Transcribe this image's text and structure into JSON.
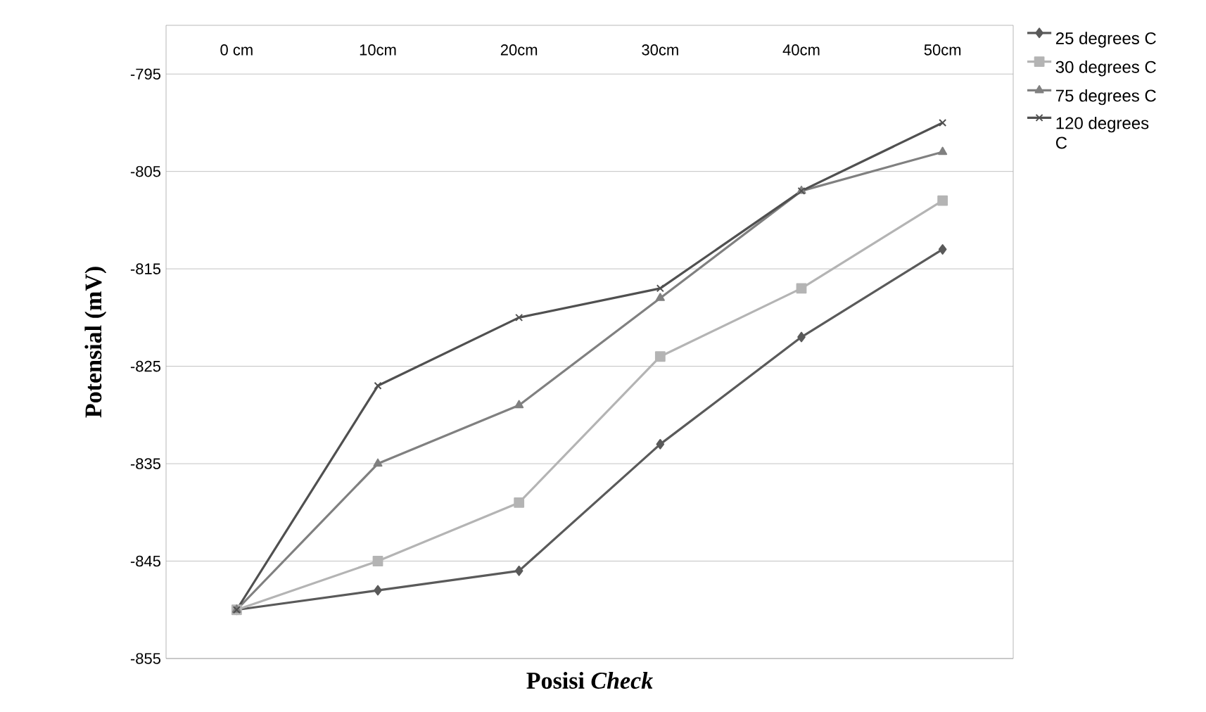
{
  "chart_data": {
    "type": "line",
    "xlabel": "Posisi *Check*",
    "ylabel": "Potensial (mV)",
    "categories": [
      "0 cm",
      "10cm",
      "20cm",
      "30cm",
      "40cm",
      "50cm"
    ],
    "series": [
      {
        "name": "25 degrees C",
        "color": "#5a5a5a",
        "marker": "diamond",
        "values": [
          -850,
          -848,
          -846,
          -833,
          -822,
          -813
        ]
      },
      {
        "name": "30 degrees C",
        "color": "#b4b4b4",
        "marker": "square",
        "values": [
          -850,
          -845,
          -839,
          -824,
          -817,
          -808
        ]
      },
      {
        "name": "75 degrees C",
        "color": "#808080",
        "marker": "triangle",
        "values": [
          -850,
          -835,
          -829,
          -818,
          -807,
          -803
        ]
      },
      {
        "name": "120 degrees C",
        "color": "#505050",
        "marker": "cross",
        "values": [
          -850,
          -827,
          -820,
          -817,
          -807,
          -800
        ]
      }
    ],
    "ylim": [
      -855,
      -790
    ],
    "yticks": [
      -855,
      -845,
      -835,
      -825,
      -815,
      -805,
      -795
    ],
    "grid": "y",
    "legend": "right"
  }
}
